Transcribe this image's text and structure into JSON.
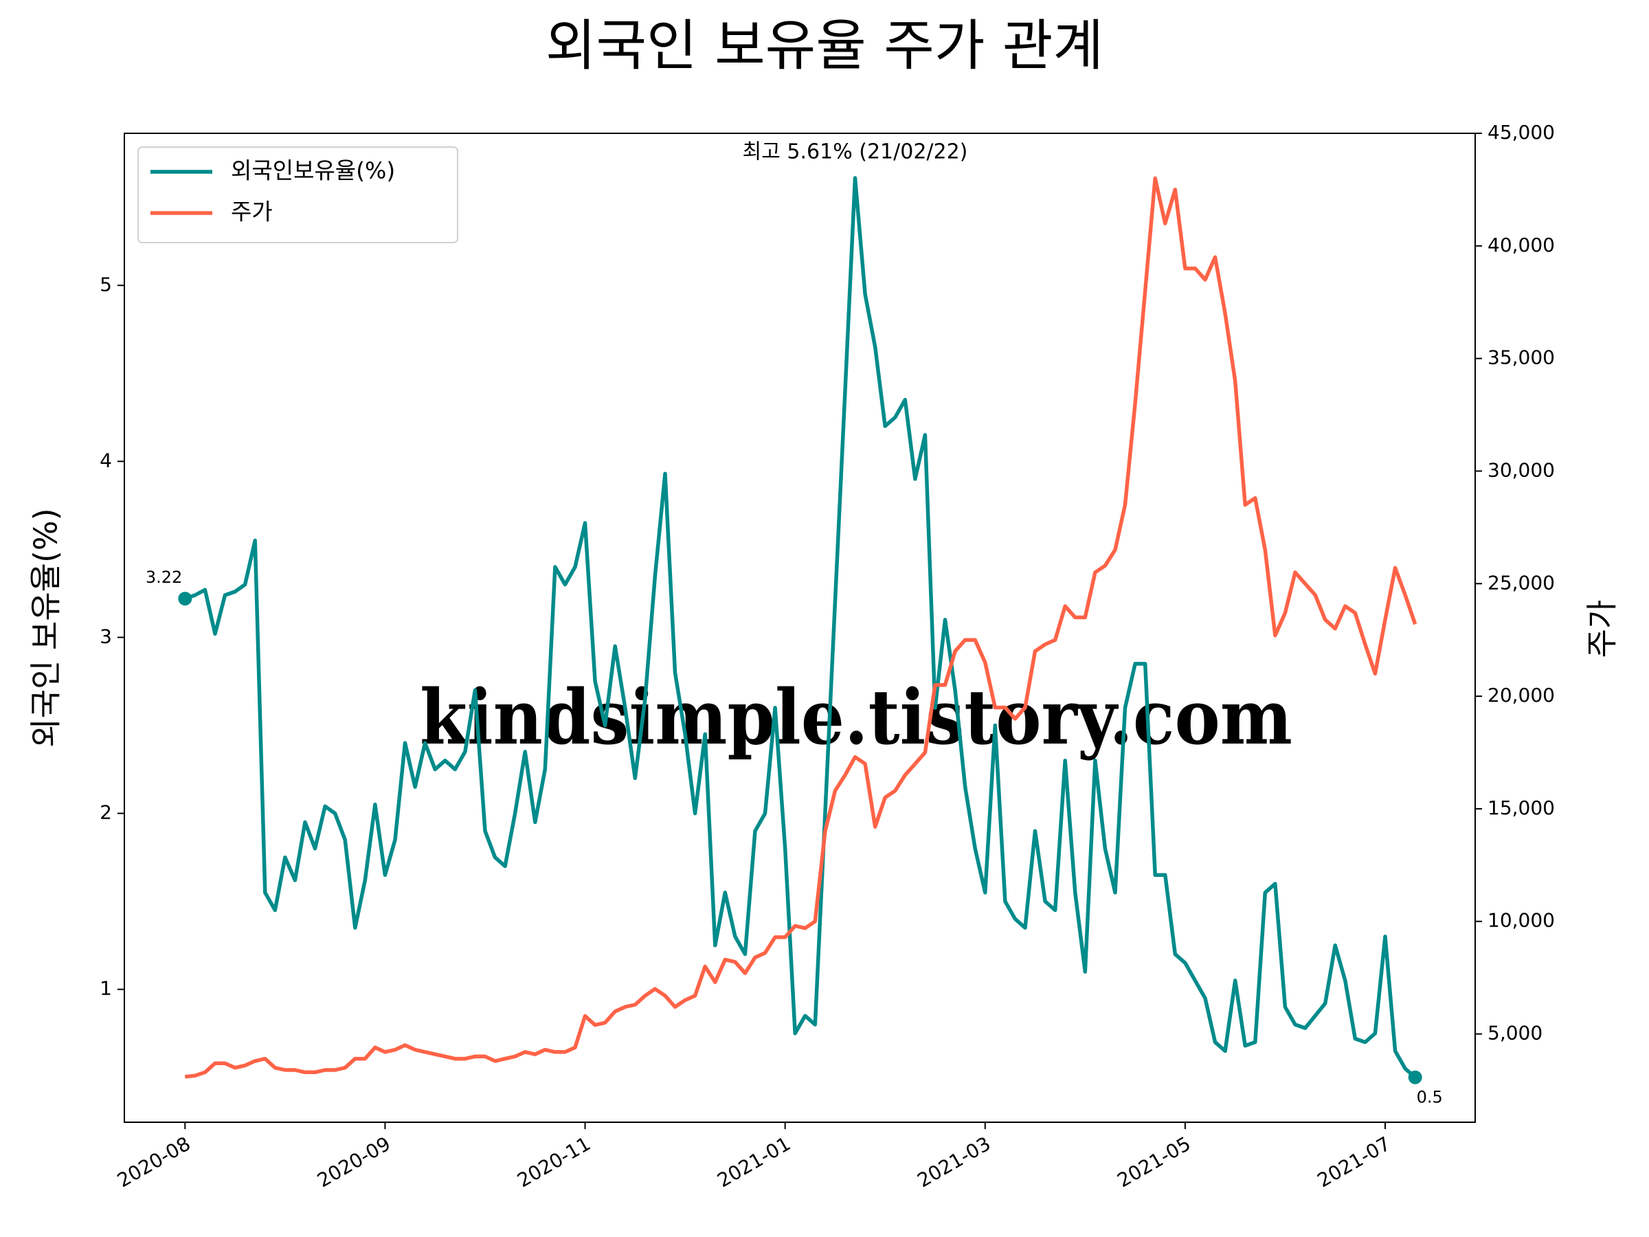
{
  "chart_data": {
    "type": "line",
    "title": "외국인 보유율 주가 관계",
    "y_label": "외국인 보유율(%)",
    "y2_label": "주가",
    "annotation": "최고 5.61% (21/02/22)",
    "watermark": "kindsimple.tistory.com",
    "legend": "upper left",
    "end_markers": true,
    "x": [
      0,
      3,
      6,
      9,
      12,
      15,
      18,
      21,
      24,
      27,
      30,
      33,
      36,
      39,
      42,
      45,
      48,
      51,
      54,
      57,
      60,
      63,
      66,
      69,
      72,
      75,
      78,
      81,
      84,
      87,
      90,
      93,
      96,
      99,
      102,
      105,
      108,
      111,
      114,
      117,
      120,
      123,
      126,
      129,
      132,
      135,
      138,
      141,
      144,
      147,
      150,
      153,
      156,
      159,
      162,
      165,
      168,
      171,
      174,
      177,
      180,
      183,
      186,
      189,
      192,
      195,
      198,
      201,
      204,
      207,
      210,
      213,
      216,
      219,
      222,
      225,
      228,
      231,
      234,
      237,
      240,
      243,
      246,
      249,
      252,
      255,
      258,
      261,
      264,
      267,
      270,
      273,
      276,
      279,
      282,
      285,
      288,
      291,
      294,
      297,
      300,
      303,
      306,
      309,
      312,
      315,
      318,
      321,
      324,
      327,
      330,
      333,
      336,
      339,
      342,
      345,
      348,
      351,
      354,
      357,
      360,
      363,
      366,
      369
    ],
    "xlim": [
      -18.2,
      387
    ],
    "xticks": [
      {
        "value": 0,
        "label": "2020-08"
      },
      {
        "value": 60,
        "label": "2020-09"
      },
      {
        "value": 120,
        "label": "2020-11"
      },
      {
        "value": 180,
        "label": "2021-01"
      },
      {
        "value": 240,
        "label": "2021-03"
      },
      {
        "value": 300,
        "label": "2021-05"
      },
      {
        "value": 360,
        "label": "2021-07"
      }
    ],
    "ylim": [
      0.245,
      5.864
    ],
    "yticks": [
      1,
      2,
      3,
      4,
      5
    ],
    "y2lim": [
      1080,
      45000
    ],
    "y2ticks": [
      {
        "value": 5000,
        "label": "5,000"
      },
      {
        "value": 10000,
        "label": "10,000"
      },
      {
        "value": 15000,
        "label": "15,000"
      },
      {
        "value": 20000,
        "label": "20,000"
      },
      {
        "value": 25000,
        "label": "25,000"
      },
      {
        "value": 30000,
        "label": "30,000"
      },
      {
        "value": 35000,
        "label": "35,000"
      },
      {
        "value": 40000,
        "label": "40,000"
      },
      {
        "value": 45000,
        "label": "45,000"
      }
    ],
    "series": [
      {
        "name": "외국인보유율(%)",
        "color": "#008b8b",
        "axis": "y",
        "values": [
          3.22,
          3.24,
          3.27,
          3.02,
          3.24,
          3.26,
          3.3,
          3.55,
          1.55,
          1.45,
          1.75,
          1.62,
          1.95,
          1.8,
          2.04,
          2.0,
          1.85,
          1.35,
          1.62,
          2.05,
          1.65,
          1.85,
          2.4,
          2.15,
          2.4,
          2.25,
          2.3,
          2.25,
          2.35,
          2.7,
          1.9,
          1.75,
          1.7,
          2.0,
          2.35,
          1.95,
          2.25,
          3.4,
          3.3,
          3.4,
          3.65,
          2.75,
          2.5,
          2.95,
          2.6,
          2.2,
          2.65,
          3.35,
          3.93,
          2.8,
          2.45,
          2.0,
          2.45,
          1.25,
          1.55,
          1.3,
          1.2,
          1.9,
          2.0,
          2.6,
          1.8,
          0.75,
          0.85,
          0.8,
          2.0,
          3.2,
          4.4,
          5.61,
          4.95,
          4.65,
          4.2,
          4.25,
          4.35,
          3.9,
          4.15,
          2.6,
          3.1,
          2.7,
          2.15,
          1.8,
          1.55,
          2.5,
          1.5,
          1.4,
          1.35,
          1.9,
          1.5,
          1.45,
          2.3,
          1.55,
          1.1,
          2.3,
          1.8,
          1.55,
          2.6,
          2.85,
          2.85,
          1.65,
          1.65,
          1.2,
          1.15,
          1.05,
          0.95,
          0.7,
          0.65,
          1.05,
          0.68,
          0.7,
          1.55,
          1.6,
          0.9,
          0.8,
          0.78,
          0.85,
          0.92,
          1.25,
          1.05,
          0.72,
          0.7,
          0.75,
          1.3,
          0.65,
          0.55,
          0.5
        ]
      },
      {
        "name": "주가",
        "color": "#ff6347",
        "axis": "y2",
        "values": [
          3100,
          3150,
          3300,
          3700,
          3700,
          3500,
          3600,
          3800,
          3900,
          3500,
          3400,
          3400,
          3300,
          3300,
          3400,
          3400,
          3500,
          3900,
          3900,
          4400,
          4200,
          4300,
          4500,
          4300,
          4200,
          4100,
          4000,
          3900,
          3900,
          4000,
          4000,
          3800,
          3900,
          4000,
          4200,
          4100,
          4300,
          4200,
          4200,
          4400,
          5800,
          5400,
          5500,
          6000,
          6200,
          6300,
          6700,
          7000,
          6700,
          6200,
          6500,
          6700,
          8000,
          7300,
          8300,
          8200,
          7700,
          8400,
          8600,
          9300,
          9300,
          9800,
          9700,
          10000,
          14000,
          15800,
          16500,
          17300,
          17000,
          14200,
          15500,
          15800,
          16500,
          17000,
          17500,
          20500,
          20500,
          22000,
          22500,
          22500,
          21500,
          19500,
          19500,
          19000,
          19500,
          22000,
          22300,
          22500,
          24000,
          23500,
          23500,
          25500,
          25800,
          26500,
          28500,
          33000,
          38000,
          43000,
          41000,
          42500,
          39000,
          39000,
          38500,
          39500,
          37000,
          34000,
          28500,
          28800,
          26500,
          22700,
          23700,
          25500,
          25000,
          24500,
          23400,
          23000,
          24000,
          23700,
          22300,
          21000,
          23400,
          25700,
          24500,
          23200
        ]
      }
    ]
  }
}
